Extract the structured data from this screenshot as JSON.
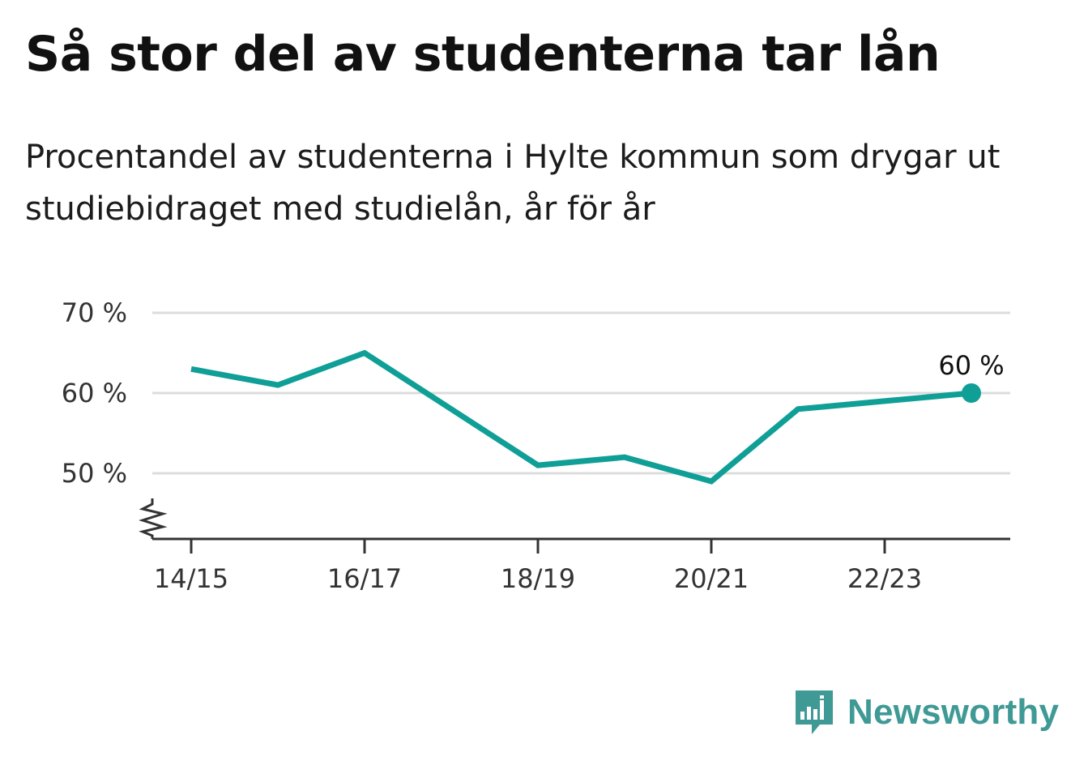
{
  "title": "Så stor del av studenterna tar lån",
  "subtitle": "Procentandel av studenterna i Hylte kommun som drygar ut studiebidraget med studielån, år för år",
  "brand": {
    "name": "Newsworthy",
    "color": "#3f9a96"
  },
  "colors": {
    "line": "#0f9f96",
    "grid": "#dcdcdc",
    "axis": "#333333"
  },
  "chart_data": {
    "type": "line",
    "categories": [
      "14/15",
      "15/16",
      "16/17",
      "17/18",
      "18/19",
      "19/20",
      "20/21",
      "21/22",
      "22/23",
      "23/24"
    ],
    "x_tick_labels": [
      "14/15",
      "16/17",
      "18/19",
      "20/21",
      "22/23"
    ],
    "series": [
      {
        "values": [
          63,
          61,
          65,
          58,
          51,
          52,
          49,
          58,
          59,
          60
        ]
      }
    ],
    "y_ticks": [
      50,
      60,
      70
    ],
    "y_tick_labels": [
      "50 %",
      "60 %",
      "70 %"
    ],
    "ylim": [
      43,
      70
    ],
    "y_axis_break": true,
    "grid": true,
    "last_point_label": "60 %",
    "xlabel": "",
    "ylabel": ""
  }
}
